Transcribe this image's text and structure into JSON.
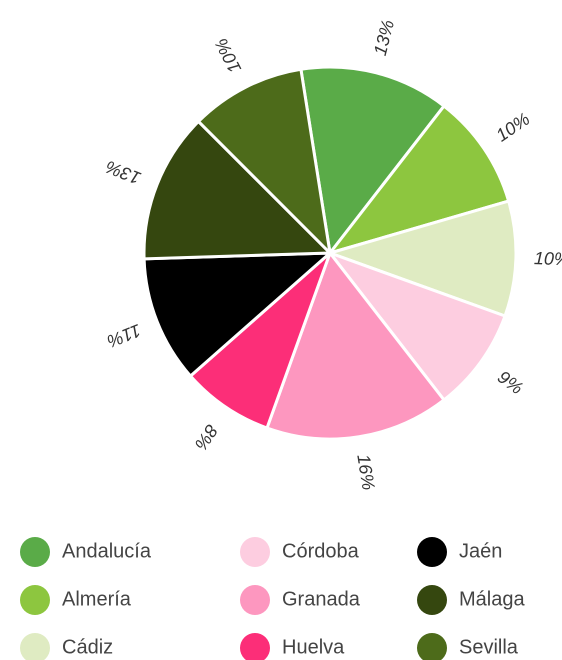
{
  "chart_data": {
    "type": "pie",
    "categories": [
      "Andalucía",
      "Almería",
      "Cádiz",
      "Córdoba",
      "Granada",
      "Huelva",
      "Jaén",
      "Málaga",
      "Sevilla"
    ],
    "values": [
      13,
      10,
      10,
      9,
      16,
      8,
      11,
      13,
      10
    ],
    "value_labels": [
      "13%",
      "10%",
      "10%",
      "9%",
      "16%",
      "8%",
      "11%",
      "13%",
      "10%"
    ],
    "colors": [
      "#5aab48",
      "#8dc63f",
      "#dfebc2",
      "#fdcde0",
      "#fd97bf",
      "#fc2e78",
      "#000000",
      "#35470f",
      "#4d6b1a"
    ]
  }
}
